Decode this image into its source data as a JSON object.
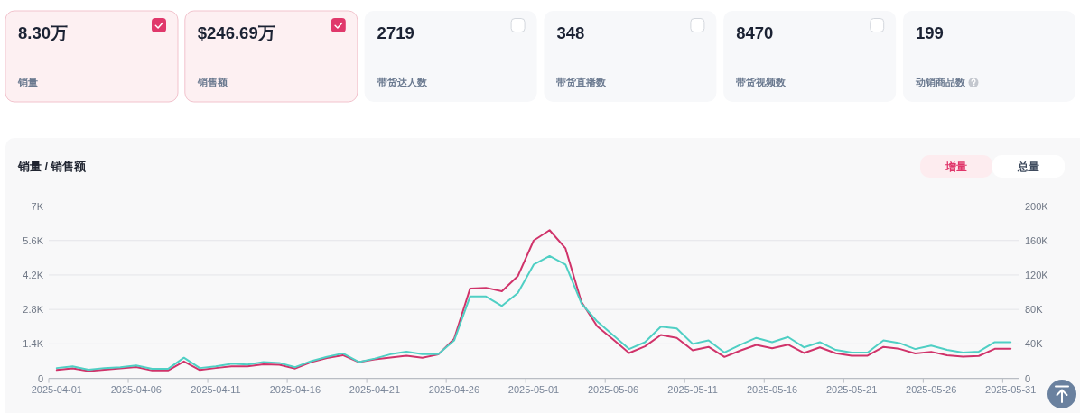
{
  "chart_data": [
    {
      "type": "other",
      "categories": [
        "销量",
        "销售额",
        "带货达人数",
        "带货直播数",
        "带货视频数",
        "动销商品数"
      ],
      "value_labels": [
        "8.30万",
        "$246.69万",
        "2719",
        "348",
        "8470",
        "199"
      ]
    },
    {
      "type": "line",
      "title": "销量 / 销售额",
      "annotations": [
        "增量",
        "总量"
      ],
      "categories": [
        "2025-04-01",
        null,
        null,
        null,
        null,
        "2025-04-06",
        null,
        null,
        null,
        null,
        "2025-04-11",
        null,
        null,
        null,
        null,
        "2025-04-16",
        null,
        null,
        null,
        null,
        "2025-04-21",
        null,
        null,
        null,
        null,
        "2025-04-26",
        null,
        null,
        null,
        null,
        "2025-05-01",
        null,
        null,
        null,
        null,
        "2025-05-06",
        null,
        null,
        null,
        null,
        "2025-05-11",
        null,
        null,
        null,
        null,
        "2025-05-16",
        null,
        null,
        null,
        null,
        "2025-05-21",
        null,
        null,
        null,
        null,
        "2025-05-26",
        null,
        null,
        null,
        null,
        "2025-05-31"
      ],
      "series": [
        {
          "color": "#d0336a",
          "values": [
            340,
            410,
            300,
            350,
            410,
            460,
            320,
            320,
            690,
            340,
            420,
            490,
            490,
            570,
            550,
            400,
            660,
            830,
            940,
            660,
            770,
            850,
            920,
            840,
            970,
            1610,
            3650,
            3680,
            3540,
            4150,
            5600,
            6020,
            5280,
            3110,
            2110,
            1580,
            1030,
            1300,
            1760,
            1640,
            1140,
            1280,
            870,
            1130,
            1360,
            1220,
            1370,
            1030,
            1260,
            1020,
            920,
            920,
            1280,
            1200,
            1010,
            1080,
            940,
            880,
            910,
            1200,
            1200
          ]
        },
        {
          "color": "#4fcfc4",
          "axis": "y2",
          "values": [
            12000,
            14000,
            10000,
            12000,
            13000,
            15000,
            11000,
            11000,
            24000,
            12000,
            14000,
            17000,
            16000,
            19000,
            18000,
            13000,
            20000,
            25000,
            29000,
            19000,
            23000,
            28000,
            31000,
            28000,
            28000,
            44000,
            95000,
            95000,
            84000,
            99000,
            132000,
            142000,
            132000,
            87000,
            66000,
            50000,
            34000,
            42000,
            60000,
            58000,
            40000,
            44000,
            30000,
            39000,
            47000,
            42000,
            48000,
            36000,
            42000,
            33000,
            30000,
            30000,
            44000,
            41000,
            34000,
            38000,
            33000,
            30000,
            31000,
            42000,
            42000
          ]
        }
      ],
      "ylim": [
        0,
        7000
      ],
      "yticks": [
        0,
        {
          "value": 1400,
          "label": "1.4K"
        },
        {
          "value": 2800,
          "label": "2.8K"
        },
        {
          "value": 4200,
          "label": "4.2K"
        },
        {
          "value": 5600,
          "label": "5.6K"
        },
        {
          "value": 7000,
          "label": "7K"
        }
      ],
      "y2lim": [
        0,
        200000
      ],
      "y2ticks": [
        0,
        {
          "value": 40000,
          "label": "40K"
        },
        {
          "value": 80000,
          "label": "80K"
        },
        {
          "value": 120000,
          "label": "120K"
        },
        {
          "value": 160000,
          "label": "160K"
        },
        {
          "value": 200000,
          "label": "200K"
        }
      ],
      "grid": "y",
      "line_style": "solid"
    }
  ]
}
